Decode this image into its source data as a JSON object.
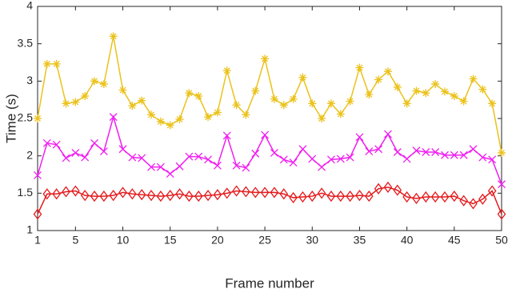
{
  "chart_data": {
    "type": "line",
    "x_label": "Frame number",
    "y_label": "Time (s)",
    "x": [
      1,
      2,
      3,
      4,
      5,
      6,
      7,
      8,
      9,
      10,
      11,
      12,
      13,
      14,
      15,
      16,
      17,
      18,
      19,
      20,
      21,
      22,
      23,
      24,
      25,
      26,
      27,
      28,
      29,
      30,
      31,
      32,
      33,
      34,
      35,
      36,
      37,
      38,
      39,
      40,
      41,
      42,
      43,
      44,
      45,
      46,
      47,
      48,
      49,
      50
    ],
    "series": [
      {
        "color": "#ebc21b",
        "marker": "asterisk",
        "values": [
          2.5,
          3.23,
          3.23,
          2.7,
          2.72,
          2.8,
          3.0,
          2.96,
          3.6,
          2.88,
          2.67,
          2.74,
          2.55,
          2.46,
          2.41,
          2.49,
          2.84,
          2.8,
          2.52,
          2.58,
          3.14,
          2.68,
          2.55,
          2.87,
          3.3,
          2.76,
          2.68,
          2.76,
          3.05,
          2.7,
          2.5,
          2.7,
          2.56,
          2.73,
          3.18,
          2.82,
          3.02,
          3.13,
          2.92,
          2.7,
          2.87,
          2.84,
          2.96,
          2.86,
          2.8,
          2.73,
          3.03,
          2.89,
          2.7,
          2.04
        ]
      },
      {
        "color": "#f01ff0",
        "marker": "cross",
        "values": [
          1.74,
          2.17,
          2.15,
          1.97,
          2.04,
          1.98,
          2.17,
          2.06,
          2.52,
          2.09,
          1.98,
          1.97,
          1.85,
          1.85,
          1.76,
          1.86,
          1.99,
          1.99,
          1.95,
          1.87,
          2.27,
          1.87,
          1.84,
          2.03,
          2.28,
          2.04,
          1.95,
          1.91,
          2.09,
          1.96,
          1.85,
          1.95,
          1.96,
          1.98,
          2.25,
          2.06,
          2.09,
          2.29,
          2.05,
          1.96,
          2.07,
          2.05,
          2.05,
          2.01,
          2.01,
          2.01,
          2.09,
          1.98,
          1.95,
          1.62
        ]
      },
      {
        "color": "#e41a1c",
        "marker": "diamond",
        "values": [
          1.22,
          1.49,
          1.49,
          1.52,
          1.53,
          1.47,
          1.46,
          1.46,
          1.47,
          1.51,
          1.49,
          1.48,
          1.47,
          1.46,
          1.47,
          1.49,
          1.46,
          1.46,
          1.47,
          1.48,
          1.5,
          1.53,
          1.52,
          1.51,
          1.51,
          1.51,
          1.49,
          1.44,
          1.45,
          1.46,
          1.5,
          1.46,
          1.46,
          1.46,
          1.47,
          1.46,
          1.56,
          1.58,
          1.54,
          1.45,
          1.43,
          1.45,
          1.45,
          1.45,
          1.46,
          1.4,
          1.36,
          1.42,
          1.53,
          1.22
        ]
      }
    ],
    "xlim": [
      1,
      50
    ],
    "xticks": [
      1,
      5,
      10,
      15,
      20,
      25,
      30,
      35,
      40,
      45,
      50
    ],
    "ylim": [
      1,
      4
    ],
    "yticks": [
      1,
      1.5,
      2,
      2.5,
      3,
      3.5,
      4
    ]
  }
}
